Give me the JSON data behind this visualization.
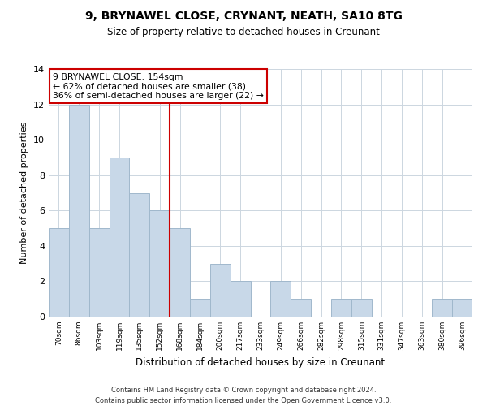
{
  "title": "9, BRYNAWEL CLOSE, CRYNANT, NEATH, SA10 8TG",
  "subtitle": "Size of property relative to detached houses in Creunant",
  "xlabel": "Distribution of detached houses by size in Creunant",
  "ylabel": "Number of detached properties",
  "bin_labels": [
    "70sqm",
    "86sqm",
    "103sqm",
    "119sqm",
    "135sqm",
    "152sqm",
    "168sqm",
    "184sqm",
    "200sqm",
    "217sqm",
    "233sqm",
    "249sqm",
    "266sqm",
    "282sqm",
    "298sqm",
    "315sqm",
    "331sqm",
    "347sqm",
    "363sqm",
    "380sqm",
    "396sqm"
  ],
  "bar_heights": [
    5,
    12,
    5,
    9,
    7,
    6,
    5,
    1,
    3,
    2,
    0,
    2,
    1,
    0,
    1,
    1,
    0,
    0,
    0,
    1,
    1
  ],
  "bar_color": "#c8d8e8",
  "bar_edge_color": "#a0b8cc",
  "vline_x": 5.5,
  "vline_color": "#cc0000",
  "annotation_line1": "9 BRYNAWEL CLOSE: 154sqm",
  "annotation_line2": "← 62% of detached houses are smaller (38)",
  "annotation_line3": "36% of semi-detached houses are larger (22) →",
  "annotation_box_edge": "#cc0000",
  "ylim": [
    0,
    14
  ],
  "yticks": [
    0,
    2,
    4,
    6,
    8,
    10,
    12,
    14
  ],
  "footer_line1": "Contains HM Land Registry data © Crown copyright and database right 2024.",
  "footer_line2": "Contains public sector information licensed under the Open Government Licence v3.0.",
  "background_color": "#ffffff",
  "grid_color": "#ccd6e0"
}
